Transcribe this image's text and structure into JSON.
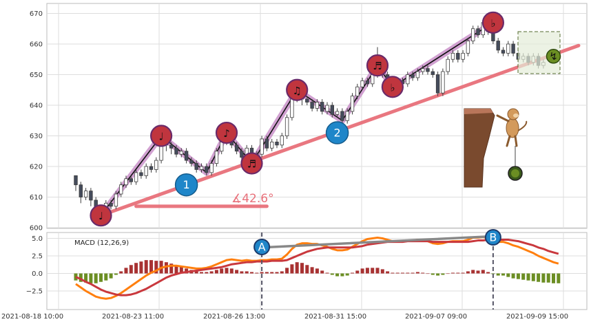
{
  "chart_data": {
    "type": "candlestick",
    "x_tick_labels": [
      "2021-08-18 10:00",
      "2021-08-23 11:00",
      "2021-08-26 13:00",
      "2021-08-31 15:00",
      "2021-09-07 09:00",
      "2021-09-09 15:00"
    ],
    "price_panel": {
      "ylim": [
        600,
        672
      ],
      "yticks": [
        600,
        610,
        620,
        630,
        640,
        650,
        660,
        670
      ],
      "grid": true,
      "candles": [
        {
          "o": 617,
          "c": 614,
          "h": 617,
          "l": 612
        },
        {
          "o": 614,
          "c": 610,
          "h": 615,
          "l": 608
        },
        {
          "o": 610,
          "c": 612,
          "h": 613,
          "l": 609
        },
        {
          "o": 612,
          "c": 609,
          "h": 613,
          "l": 607
        },
        {
          "o": 609,
          "c": 606,
          "h": 610,
          "l": 605
        },
        {
          "o": 606,
          "c": 604,
          "h": 607,
          "l": 603
        },
        {
          "o": 604,
          "c": 608,
          "h": 609,
          "l": 603
        },
        {
          "o": 608,
          "c": 607,
          "h": 609,
          "l": 606
        },
        {
          "o": 607,
          "c": 611,
          "h": 612,
          "l": 606
        },
        {
          "o": 611,
          "c": 614,
          "h": 615,
          "l": 610
        },
        {
          "o": 614,
          "c": 616,
          "h": 617,
          "l": 613
        },
        {
          "o": 616,
          "c": 615,
          "h": 617,
          "l": 614
        },
        {
          "o": 615,
          "c": 618,
          "h": 619,
          "l": 614
        },
        {
          "o": 618,
          "c": 617,
          "h": 619,
          "l": 616
        },
        {
          "o": 617,
          "c": 620,
          "h": 621,
          "l": 616
        },
        {
          "o": 620,
          "c": 619,
          "h": 621,
          "l": 618
        },
        {
          "o": 619,
          "c": 622,
          "h": 623,
          "l": 618
        },
        {
          "o": 622,
          "c": 630,
          "h": 631,
          "l": 621
        },
        {
          "o": 630,
          "c": 627,
          "h": 631,
          "l": 625
        },
        {
          "o": 627,
          "c": 626,
          "h": 628,
          "l": 624
        },
        {
          "o": 626,
          "c": 624,
          "h": 627,
          "l": 623
        },
        {
          "o": 624,
          "c": 625,
          "h": 626,
          "l": 623
        },
        {
          "o": 625,
          "c": 622,
          "h": 626,
          "l": 621
        },
        {
          "o": 622,
          "c": 621,
          "h": 623,
          "l": 620
        },
        {
          "o": 621,
          "c": 619,
          "h": 622,
          "l": 618
        },
        {
          "o": 619,
          "c": 620,
          "h": 621,
          "l": 618
        },
        {
          "o": 620,
          "c": 618,
          "h": 621,
          "l": 617
        },
        {
          "o": 618,
          "c": 621,
          "h": 622,
          "l": 617
        },
        {
          "o": 621,
          "c": 625,
          "h": 626,
          "l": 620
        },
        {
          "o": 625,
          "c": 628,
          "h": 629,
          "l": 624
        },
        {
          "o": 628,
          "c": 631,
          "h": 632,
          "l": 627
        },
        {
          "o": 631,
          "c": 627,
          "h": 632,
          "l": 626
        },
        {
          "o": 627,
          "c": 625,
          "h": 628,
          "l": 624
        },
        {
          "o": 625,
          "c": 623,
          "h": 626,
          "l": 622
        },
        {
          "o": 623,
          "c": 626,
          "h": 627,
          "l": 622
        },
        {
          "o": 626,
          "c": 621,
          "h": 627,
          "l": 620
        },
        {
          "o": 621,
          "c": 624,
          "h": 625,
          "l": 620
        },
        {
          "o": 624,
          "c": 629,
          "h": 630,
          "l": 623
        },
        {
          "o": 629,
          "c": 626,
          "h": 630,
          "l": 625
        },
        {
          "o": 626,
          "c": 628,
          "h": 629,
          "l": 625
        },
        {
          "o": 628,
          "c": 627,
          "h": 629,
          "l": 626
        },
        {
          "o": 627,
          "c": 630,
          "h": 631,
          "l": 626
        },
        {
          "o": 630,
          "c": 636,
          "h": 637,
          "l": 629
        },
        {
          "o": 636,
          "c": 642,
          "h": 643,
          "l": 635
        },
        {
          "o": 642,
          "c": 645,
          "h": 646,
          "l": 641
        },
        {
          "o": 645,
          "c": 642,
          "h": 646,
          "l": 640
        },
        {
          "o": 642,
          "c": 641,
          "h": 643,
          "l": 640
        },
        {
          "o": 641,
          "c": 639,
          "h": 642,
          "l": 638
        },
        {
          "o": 639,
          "c": 641,
          "h": 642,
          "l": 638
        },
        {
          "o": 641,
          "c": 638,
          "h": 642,
          "l": 637
        },
        {
          "o": 638,
          "c": 640,
          "h": 641,
          "l": 637
        },
        {
          "o": 640,
          "c": 637,
          "h": 641,
          "l": 636
        },
        {
          "o": 637,
          "c": 638,
          "h": 639,
          "l": 636
        },
        {
          "o": 638,
          "c": 635,
          "h": 639,
          "l": 634
        },
        {
          "o": 635,
          "c": 638,
          "h": 639,
          "l": 634
        },
        {
          "o": 638,
          "c": 643,
          "h": 644,
          "l": 637
        },
        {
          "o": 643,
          "c": 646,
          "h": 647,
          "l": 642
        },
        {
          "o": 646,
          "c": 648,
          "h": 649,
          "l": 645
        },
        {
          "o": 648,
          "c": 647,
          "h": 649,
          "l": 646
        },
        {
          "o": 647,
          "c": 650,
          "h": 651,
          "l": 646
        },
        {
          "o": 650,
          "c": 653,
          "h": 659,
          "l": 649
        },
        {
          "o": 653,
          "c": 650,
          "h": 654,
          "l": 649
        },
        {
          "o": 650,
          "c": 648,
          "h": 651,
          "l": 647
        },
        {
          "o": 648,
          "c": 646,
          "h": 649,
          "l": 645
        },
        {
          "o": 646,
          "c": 648,
          "h": 649,
          "l": 645
        },
        {
          "o": 648,
          "c": 647,
          "h": 649,
          "l": 646
        },
        {
          "o": 647,
          "c": 650,
          "h": 651,
          "l": 646
        },
        {
          "o": 650,
          "c": 649,
          "h": 651,
          "l": 648
        },
        {
          "o": 649,
          "c": 651,
          "h": 652,
          "l": 648
        },
        {
          "o": 651,
          "c": 652,
          "h": 653,
          "l": 650
        },
        {
          "o": 652,
          "c": 651,
          "h": 653,
          "l": 650
        },
        {
          "o": 651,
          "c": 650,
          "h": 652,
          "l": 649
        },
        {
          "o": 650,
          "c": 644,
          "h": 651,
          "l": 643
        },
        {
          "o": 644,
          "c": 651,
          "h": 652,
          "l": 643
        },
        {
          "o": 651,
          "c": 655,
          "h": 656,
          "l": 650
        },
        {
          "o": 655,
          "c": 657,
          "h": 658,
          "l": 654
        },
        {
          "o": 657,
          "c": 655,
          "h": 658,
          "l": 654
        },
        {
          "o": 655,
          "c": 657,
          "h": 658,
          "l": 654
        },
        {
          "o": 657,
          "c": 661,
          "h": 662,
          "l": 656
        },
        {
          "o": 661,
          "c": 665,
          "h": 666,
          "l": 660
        },
        {
          "o": 665,
          "c": 663,
          "h": 666,
          "l": 662
        },
        {
          "o": 663,
          "c": 667,
          "h": 668,
          "l": 662
        },
        {
          "o": 667,
          "c": 664,
          "h": 668,
          "l": 663
        },
        {
          "o": 664,
          "c": 661,
          "h": 665,
          "l": 660
        },
        {
          "o": 661,
          "c": 658,
          "h": 662,
          "l": 657
        },
        {
          "o": 658,
          "c": 657,
          "h": 659,
          "l": 656
        },
        {
          "o": 657,
          "c": 660,
          "h": 661,
          "l": 656
        },
        {
          "o": 660,
          "c": 657,
          "h": 661,
          "l": 656
        },
        {
          "o": 657,
          "c": 655,
          "h": 658,
          "l": 654
        },
        {
          "o": 655,
          "c": 656,
          "h": 657,
          "l": 654
        },
        {
          "o": 656,
          "c": 654,
          "h": 657,
          "l": 653
        },
        {
          "o": 654,
          "c": 656,
          "h": 657,
          "l": 653
        },
        {
          "o": 656,
          "c": 653,
          "h": 657,
          "l": 652
        },
        {
          "o": 653,
          "c": 654,
          "h": 655,
          "l": 652
        }
      ],
      "zigzag": [
        {
          "i": 5,
          "v": 604
        },
        {
          "i": 17,
          "v": 630
        },
        {
          "i": 26,
          "v": 618
        },
        {
          "i": 30,
          "v": 631
        },
        {
          "i": 35,
          "v": 621
        },
        {
          "i": 44,
          "v": 645
        },
        {
          "i": 53,
          "v": 635
        },
        {
          "i": 60,
          "v": 653
        },
        {
          "i": 63,
          "v": 646
        },
        {
          "i": 83,
          "v": 667
        }
      ],
      "trendline": [
        {
          "i": 5,
          "v": 604
        },
        {
          "i": 100,
          "v": 659.5
        }
      ],
      "angle_baseline": {
        "i0": 12,
        "i1": 38,
        "v": 607
      },
      "angle_label": "∡42.6°",
      "markers": [
        {
          "i": 5,
          "v": 604,
          "type": "note",
          "glyph": "♩"
        },
        {
          "i": 17,
          "v": 630,
          "type": "note",
          "glyph": "♩"
        },
        {
          "i": 22,
          "v": 614,
          "type": "wave",
          "label": "1"
        },
        {
          "i": 30,
          "v": 631,
          "type": "note",
          "glyph": "♪"
        },
        {
          "i": 35,
          "v": 621,
          "type": "note",
          "glyph": "♬"
        },
        {
          "i": 44,
          "v": 645,
          "type": "note",
          "glyph": "♫"
        },
        {
          "i": 52,
          "v": 631,
          "type": "wave",
          "label": "2"
        },
        {
          "i": 60,
          "v": 653,
          "type": "note",
          "glyph": "♬"
        },
        {
          "i": 63,
          "v": 646,
          "type": "note",
          "glyph": "♭"
        },
        {
          "i": 83,
          "v": 667,
          "type": "note",
          "glyph": "♭"
        },
        {
          "i": 95,
          "v": 656,
          "type": "coin",
          "glyph": "↯"
        }
      ]
    },
    "macd_panel": {
      "label": "MACD (12,26,9)",
      "ylim": [
        -4.6,
        6.1
      ],
      "yticks": [
        5.0,
        2.5,
        0.0,
        -2.5
      ],
      "ytick_labels": [
        "5.0",
        "2.5",
        "0.0",
        "−2.5"
      ],
      "macd_line": [
        -1.5,
        -2.0,
        -2.5,
        -2.9,
        -3.3,
        -3.5,
        -3.6,
        -3.5,
        -3.2,
        -2.8,
        -2.3,
        -1.8,
        -1.3,
        -0.8,
        -0.3,
        0.1,
        0.4,
        0.8,
        1.0,
        1.1,
        1.1,
        1.0,
        0.9,
        0.8,
        0.7,
        0.7,
        0.8,
        1.0,
        1.3,
        1.6,
        1.9,
        2.0,
        1.9,
        1.8,
        1.9,
        1.8,
        1.8,
        1.9,
        1.9,
        2.0,
        2.0,
        2.1,
        2.7,
        3.5,
        4.1,
        4.3,
        4.3,
        4.2,
        4.2,
        4.0,
        3.8,
        3.5,
        3.3,
        3.3,
        3.4,
        3.8,
        4.2,
        4.6,
        4.9,
        5.0,
        5.1,
        5.0,
        4.8,
        4.6,
        4.6,
        4.6,
        4.7,
        4.7,
        4.8,
        4.7,
        4.6,
        4.3,
        4.2,
        4.3,
        4.5,
        4.6,
        4.6,
        4.6,
        4.8,
        5.1,
        5.1,
        5.2,
        5.0,
        4.7,
        4.5,
        4.5,
        4.3,
        4.0,
        3.8,
        3.5,
        3.2,
        2.9,
        2.5,
        2.2,
        1.9,
        1.6,
        1.4
      ],
      "signal_line": [
        -0.5,
        -0.8,
        -1.2,
        -1.5,
        -1.9,
        -2.3,
        -2.6,
        -2.8,
        -3.0,
        -3.1,
        -3.1,
        -3.0,
        -2.8,
        -2.5,
        -2.2,
        -1.8,
        -1.4,
        -1.0,
        -0.6,
        -0.3,
        -0.1,
        0.1,
        0.2,
        0.3,
        0.4,
        0.5,
        0.6,
        0.7,
        0.8,
        0.9,
        1.1,
        1.3,
        1.4,
        1.5,
        1.6,
        1.6,
        1.7,
        1.7,
        1.7,
        1.8,
        1.8,
        1.8,
        1.9,
        2.2,
        2.5,
        2.8,
        3.1,
        3.3,
        3.5,
        3.6,
        3.7,
        3.7,
        3.7,
        3.7,
        3.7,
        3.7,
        3.8,
        3.9,
        4.1,
        4.2,
        4.3,
        4.4,
        4.5,
        4.5,
        4.5,
        4.5,
        4.6,
        4.6,
        4.6,
        4.6,
        4.6,
        4.5,
        4.5,
        4.5,
        4.5,
        4.5,
        4.5,
        4.5,
        4.5,
        4.6,
        4.7,
        4.7,
        4.8,
        4.8,
        4.8,
        4.8,
        4.8,
        4.7,
        4.6,
        4.4,
        4.2,
        4.0,
        3.7,
        3.5,
        3.2,
        3.0,
        2.8
      ],
      "divergence_line": [
        {
          "i": 37,
          "v": 3.7
        },
        {
          "i": 83,
          "v": 5.3
        }
      ],
      "vlines": [
        {
          "i": 37,
          "label": "A"
        },
        {
          "i": 83,
          "label": "B"
        }
      ]
    }
  },
  "colors": {
    "up": "#ffffff",
    "down": "#454c5c",
    "candle_edge": "#3d3d3d",
    "zigzag_halo": "#c990c9",
    "zigzag_line": "#111111",
    "trendline": "#e8707a",
    "macd_line": "#ff7f0e",
    "signal_line": "#c9383d",
    "hist_pos": "#a83232",
    "hist_neg": "#6b8e23",
    "divergence": "#888888",
    "marker_red": "#c0353e",
    "marker_blue": "#1f86c9",
    "marker_border": "#6a2a6a",
    "grid": "#dddddd",
    "axis": "#bbbbbb"
  }
}
